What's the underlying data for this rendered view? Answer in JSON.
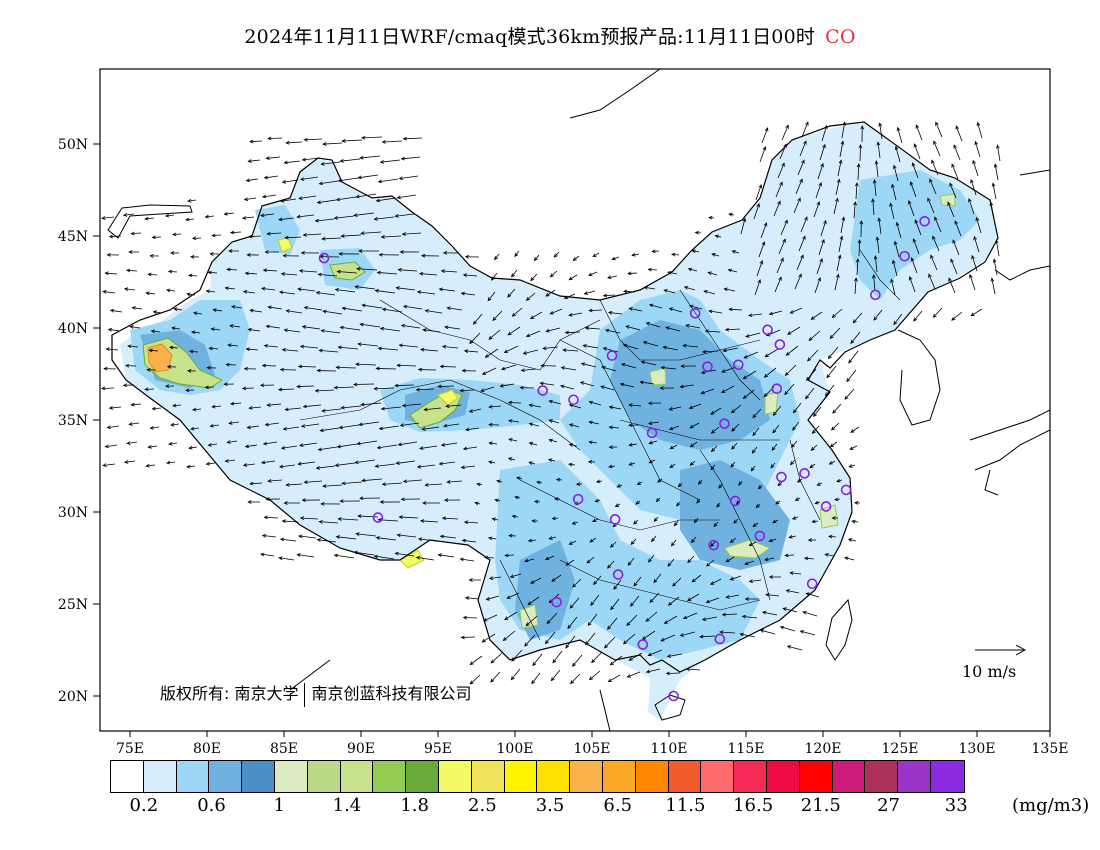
{
  "title": {
    "main": "2024年11月11日WRF/cmaq模式36km预报产品:11月11日00时",
    "species": "CO"
  },
  "map": {
    "lat_labels": [
      "50N",
      "45N",
      "40N",
      "35N",
      "30N",
      "25N",
      "20N"
    ],
    "lon_labels": [
      "75E",
      "80E",
      "85E",
      "90E",
      "95E",
      "100E",
      "105E",
      "110E",
      "115E",
      "120E",
      "125E",
      "130E",
      "135E"
    ],
    "copyright": {
      "part1": "版权所有: 南京大学",
      "part2": "南京创蓝科技有限公司"
    },
    "wind_reference": {
      "value": 10,
      "label": "10 m/s"
    },
    "city_markers": [
      [
        87.6,
        43.8
      ],
      [
        91.1,
        29.7
      ],
      [
        101.8,
        36.6
      ],
      [
        103.8,
        36.1
      ],
      [
        106.3,
        38.5
      ],
      [
        104.1,
        30.7
      ],
      [
        106.5,
        29.6
      ],
      [
        106.7,
        26.6
      ],
      [
        102.7,
        25.1
      ],
      [
        108.3,
        22.8
      ],
      [
        110.3,
        20.0
      ],
      [
        113.3,
        23.1
      ],
      [
        112.9,
        28.2
      ],
      [
        114.3,
        30.6
      ],
      [
        115.9,
        28.7
      ],
      [
        117.3,
        31.9
      ],
      [
        118.8,
        32.1
      ],
      [
        120.2,
        30.3
      ],
      [
        121.5,
        31.2
      ],
      [
        119.3,
        26.1
      ],
      [
        108.9,
        34.3
      ],
      [
        113.6,
        34.8
      ],
      [
        112.5,
        37.9
      ],
      [
        114.5,
        38.0
      ],
      [
        116.4,
        39.9
      ],
      [
        117.2,
        39.1
      ],
      [
        117.0,
        36.7
      ],
      [
        111.7,
        40.8
      ],
      [
        123.4,
        41.8
      ],
      [
        125.3,
        43.9
      ],
      [
        126.6,
        45.8
      ]
    ]
  },
  "legend": {
    "colors": [
      "#ffffff",
      "#d6eefc",
      "#9cd7f6",
      "#6fb2e0",
      "#4a8fc5",
      "#dcecc0",
      "#bcd98a",
      "#c7e28a",
      "#92cc52",
      "#6aaa38",
      "#f2fb63",
      "#f0e25a",
      "#fff500",
      "#fee100",
      "#f9b14a",
      "#fba727",
      "#ff8700",
      "#f25c2d",
      "#ff6b6b",
      "#f52a56",
      "#ef0a44",
      "#ff0000",
      "#cc1b7a",
      "#ad2f5b",
      "#9a34c7",
      "#8a2be2"
    ],
    "labels": [
      "0.2",
      "0.6",
      "1",
      "1.4",
      "1.8",
      "2.5",
      "3.5",
      "6.5",
      "11.5",
      "16.5",
      "21.5",
      "27",
      "33"
    ],
    "unit": "(mg/m3)"
  }
}
